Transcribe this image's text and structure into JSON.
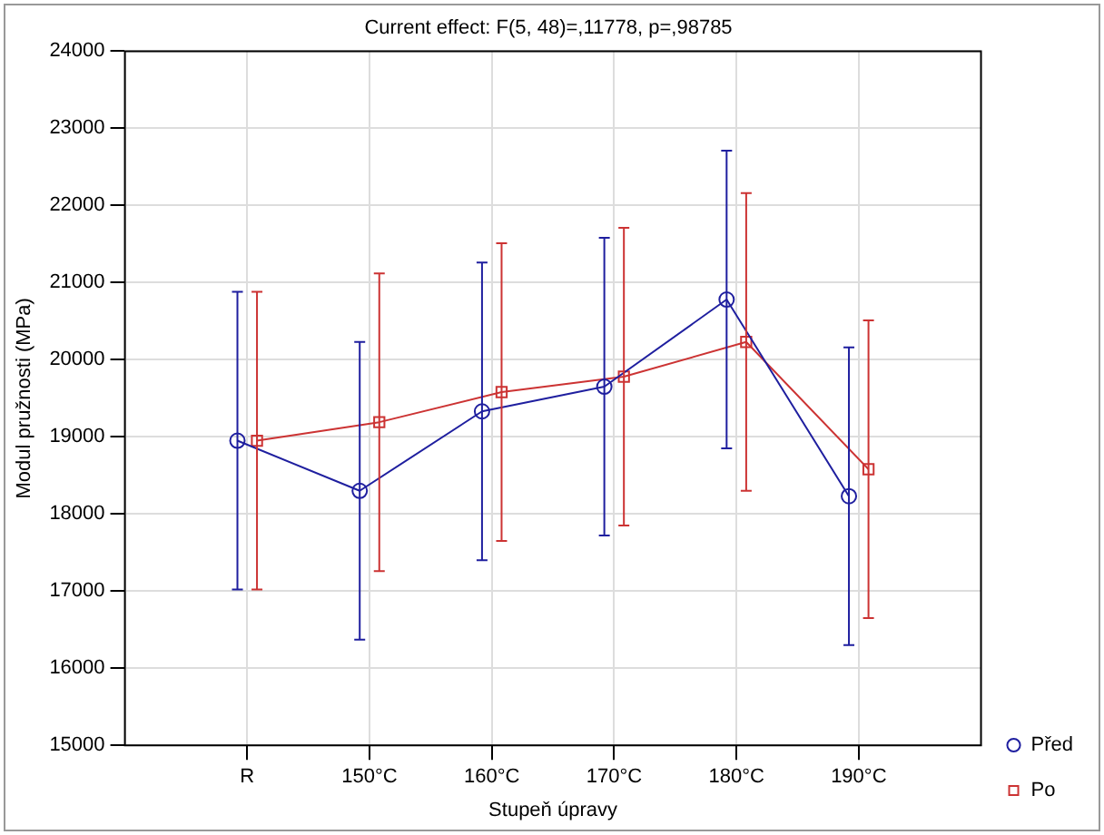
{
  "chart_data": {
    "type": "line",
    "title": "Current effect: F(5, 48)=,11778, p=,98785",
    "xlabel": "Stupeň úpravy",
    "ylabel": "Modul pružnosti (MPa)",
    "categories": [
      "R",
      "150°C",
      "160°C",
      "170°C",
      "180°C",
      "190°C"
    ],
    "series": [
      {
        "name": "Před",
        "color": "#1f1f9f",
        "values": [
          18950,
          18300,
          19330,
          19650,
          20780,
          18230
        ],
        "errors": [
          1930,
          1930,
          1930,
          1930,
          1930,
          1930
        ],
        "marker": "circle"
      },
      {
        "name": "Po",
        "color": "#cc3333",
        "values": [
          18950,
          19190,
          19580,
          19780,
          20230,
          18580
        ],
        "errors": [
          1930,
          1930,
          1930,
          1930,
          1930,
          1930
        ],
        "marker": "square"
      }
    ],
    "ylim": [
      15000,
      24000
    ],
    "yticks": [
      15000,
      16000,
      17000,
      18000,
      19000,
      20000,
      21000,
      22000,
      23000,
      24000
    ],
    "grid": true,
    "legend": "bottom right",
    "line_style": "solid"
  }
}
